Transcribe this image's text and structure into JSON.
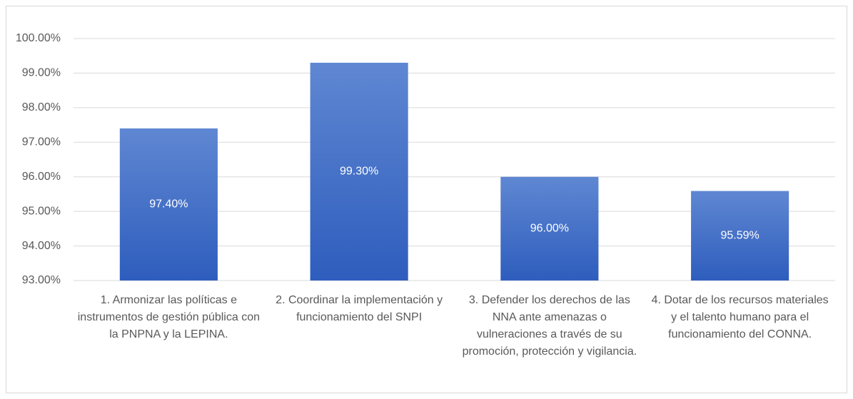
{
  "chart_data": {
    "type": "bar",
    "categories": [
      "1. Armonizar las políticas e instrumentos de gestión pública con la PNPNA y la LEPINA.",
      "2. Coordinar la implementación y funcionamiento del SNPI",
      "3. Defender los derechos de las NNA ante amenazas o vulneraciones a través de su promoción, protección y vigilancia.",
      "4. Dotar de los recursos materiales y el talento humano para el funcionamiento del CONNA."
    ],
    "values": [
      97.4,
      99.3,
      96.0,
      95.59
    ],
    "value_labels": [
      "97.40%",
      "99.30%",
      "96.00%",
      "95.59%"
    ],
    "color": "#4472c4",
    "ylim": [
      93,
      100
    ],
    "yticks": [
      {
        "value": 93,
        "label": "93.00%"
      },
      {
        "value": 94,
        "label": "94.00%"
      },
      {
        "value": 95,
        "label": "95.00%"
      },
      {
        "value": 96,
        "label": "96.00%"
      },
      {
        "value": 97,
        "label": "97.00%"
      },
      {
        "value": 98,
        "label": "98.00%"
      },
      {
        "value": 99,
        "label": "99.00%"
      },
      {
        "value": 100,
        "label": "100.00%"
      }
    ],
    "grid": true
  }
}
